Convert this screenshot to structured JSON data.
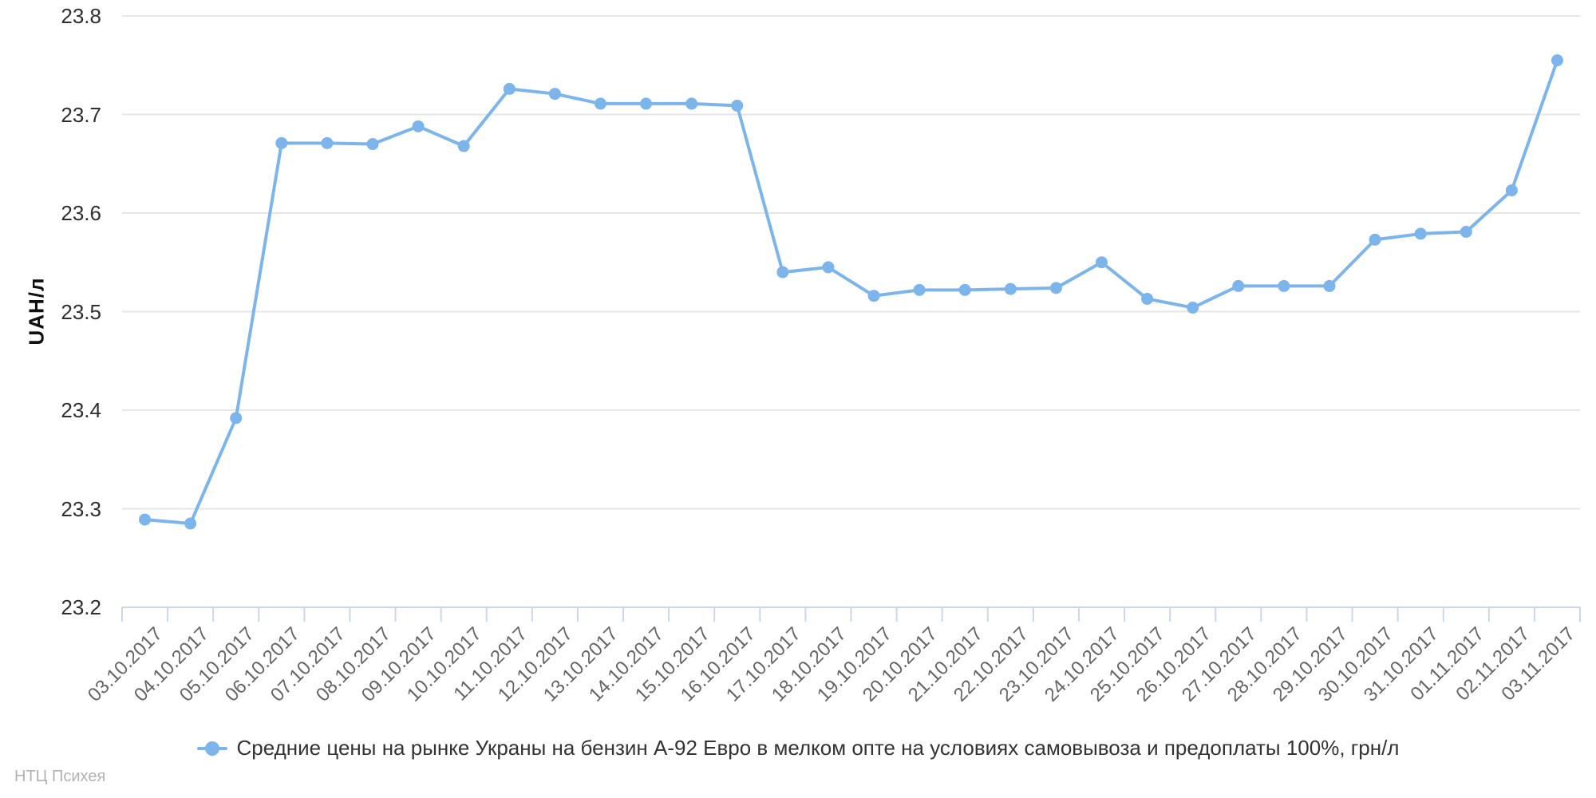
{
  "chart_data": {
    "type": "line",
    "title": "",
    "xlabel": "",
    "ylabel": "UAH/л",
    "ylim": [
      23.2,
      23.8
    ],
    "y_tick_interval": 0.1,
    "grid": true,
    "legend_position": "bottom-center",
    "categories": [
      "03.10.2017",
      "04.10.2017",
      "05.10.2017",
      "06.10.2017",
      "07.10.2017",
      "08.10.2017",
      "09.10.2017",
      "10.10.2017",
      "11.10.2017",
      "12.10.2017",
      "13.10.2017",
      "14.10.2017",
      "15.10.2017",
      "16.10.2017",
      "17.10.2017",
      "18.10.2017",
      "19.10.2017",
      "20.10.2017",
      "21.10.2017",
      "22.10.2017",
      "23.10.2017",
      "24.10.2017",
      "25.10.2017",
      "26.10.2017",
      "27.10.2017",
      "28.10.2017",
      "29.10.2017",
      "30.10.2017",
      "31.10.2017",
      "01.11.2017",
      "02.11.2017",
      "03.11.2017"
    ],
    "series": [
      {
        "name": "Средние цены на рынке Украны на бензин А-92 Евро в мелком опте на условиях самовывоза и предоплаты 100%, грн/л",
        "color": "#7cb5ec",
        "values": [
          23.289,
          23.285,
          23.392,
          23.671,
          23.671,
          23.67,
          23.688,
          23.668,
          23.726,
          23.721,
          23.711,
          23.711,
          23.711,
          23.709,
          23.54,
          23.545,
          23.516,
          23.522,
          23.522,
          23.523,
          23.524,
          23.55,
          23.513,
          23.504,
          23.526,
          23.526,
          23.526,
          23.573,
          23.579,
          23.581,
          23.623,
          23.755
        ]
      }
    ],
    "colors": {
      "gridline": "#e6e6e6",
      "axis_line": "#ccd6eb",
      "x_label": "#666666",
      "y_label": "#2f2f2f",
      "legend_text": "#333333"
    }
  },
  "footer": {
    "credit": "НТЦ Психея"
  }
}
